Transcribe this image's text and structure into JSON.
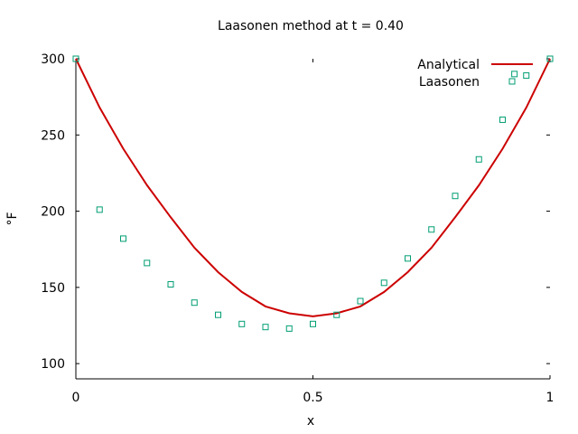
{
  "chart_data": {
    "type": "line",
    "title": "Laasonen method at t = 0.40",
    "xlabel": "x",
    "ylabel": "°F",
    "xlim": [
      0,
      1
    ],
    "ylim": [
      90,
      300
    ],
    "xticks": [
      0,
      0.5,
      1
    ],
    "xtick_labels": [
      "0",
      "0.5",
      "1"
    ],
    "yticks": [
      100,
      150,
      200,
      250,
      300
    ],
    "ytick_labels": [
      "100",
      "150",
      "200",
      "250",
      "300"
    ],
    "grid": false,
    "legend_position": "top-right",
    "series": [
      {
        "name": "Analytical",
        "style": "line",
        "color": "#cc0000",
        "x": [
          0,
          0.05,
          0.1,
          0.15,
          0.2,
          0.25,
          0.3,
          0.35,
          0.4,
          0.45,
          0.5,
          0.55,
          0.6,
          0.65,
          0.7,
          0.75,
          0.8,
          0.85,
          0.9,
          0.95,
          1
        ],
        "y": [
          300,
          268,
          241,
          217,
          196,
          176,
          160,
          147,
          137.5,
          133,
          131,
          133,
          137.5,
          147,
          160,
          176,
          196,
          217,
          241,
          268,
          300
        ]
      },
      {
        "name": "Laasonen",
        "style": "points",
        "marker": "open-square",
        "color": "#009e73",
        "x": [
          0,
          0.05,
          0.1,
          0.15,
          0.2,
          0.25,
          0.3,
          0.35,
          0.4,
          0.45,
          0.5,
          0.55,
          0.6,
          0.65,
          0.7,
          0.75,
          0.8,
          0.85,
          0.9,
          0.925,
          0.95,
          1
        ],
        "y": [
          300,
          201,
          182,
          166,
          152,
          140,
          132,
          126,
          124,
          123,
          126,
          132,
          141,
          153,
          169,
          188,
          210,
          234,
          260,
          290,
          289,
          300
        ]
      }
    ]
  }
}
